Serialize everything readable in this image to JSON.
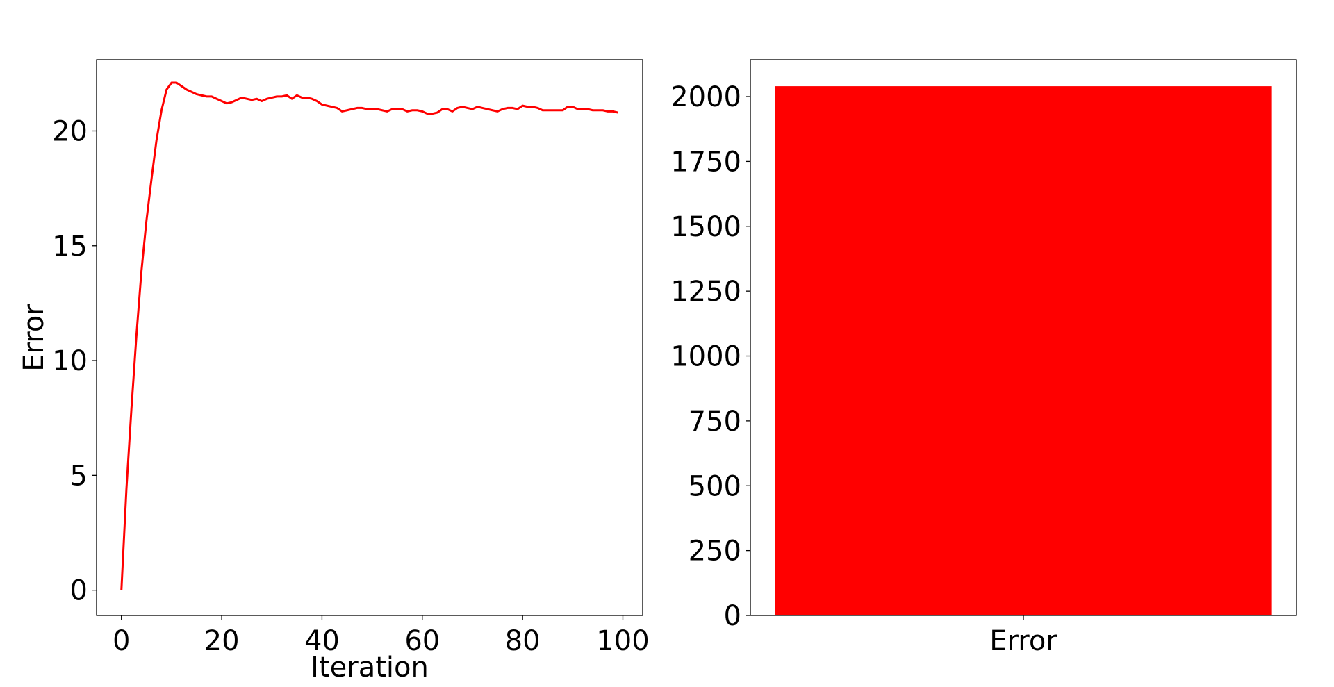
{
  "chart_data": [
    {
      "type": "line",
      "title": "",
      "xlabel": "Iteration",
      "ylabel": "Error",
      "xlim": [
        -4.95,
        103.95
      ],
      "ylim": [
        -1.1,
        23.1
      ],
      "xticks": [
        "0",
        "20",
        "40",
        "60",
        "80",
        "100"
      ],
      "yticks": [
        "0",
        "5",
        "10",
        "15",
        "20"
      ],
      "grid": false,
      "series": [
        {
          "color": "#ff0000",
          "x": [
            0,
            1,
            2,
            3,
            4,
            5,
            6,
            7,
            8,
            9,
            10,
            11,
            12,
            13,
            14,
            15,
            16,
            17,
            18,
            19,
            20,
            21,
            22,
            23,
            24,
            25,
            26,
            27,
            28,
            29,
            30,
            31,
            32,
            33,
            34,
            35,
            36,
            37,
            38,
            39,
            40,
            41,
            42,
            43,
            44,
            45,
            46,
            47,
            48,
            49,
            50,
            51,
            52,
            53,
            54,
            55,
            56,
            57,
            58,
            59,
            60,
            61,
            62,
            63,
            64,
            65,
            66,
            67,
            68,
            69,
            70,
            71,
            72,
            73,
            74,
            75,
            76,
            77,
            78,
            79,
            80,
            81,
            82,
            83,
            84,
            85,
            86,
            87,
            88,
            89,
            90,
            91,
            92,
            93,
            94,
            95,
            96,
            97,
            98,
            99
          ],
          "y": [
            0,
            4.4,
            7.9,
            11.1,
            13.9,
            16.1,
            17.9,
            19.6,
            20.9,
            21.8,
            22.1,
            22.1,
            21.95,
            21.8,
            21.7,
            21.6,
            21.55,
            21.5,
            21.5,
            21.4,
            21.3,
            21.2,
            21.25,
            21.35,
            21.45,
            21.4,
            21.35,
            21.4,
            21.3,
            21.4,
            21.45,
            21.5,
            21.5,
            21.55,
            21.4,
            21.55,
            21.45,
            21.45,
            21.4,
            21.3,
            21.15,
            21.1,
            21.05,
            21.0,
            20.85,
            20.9,
            20.95,
            21.0,
            21.0,
            20.95,
            20.95,
            20.95,
            20.9,
            20.85,
            20.95,
            20.95,
            20.95,
            20.85,
            20.9,
            20.9,
            20.85,
            20.75,
            20.75,
            20.8,
            20.95,
            20.95,
            20.85,
            21.0,
            21.05,
            21.0,
            20.95,
            21.05,
            21.0,
            20.95,
            20.9,
            20.85,
            20.95,
            21.0,
            21.0,
            20.95,
            21.1,
            21.05,
            21.05,
            21.0,
            20.9,
            20.9,
            20.9,
            20.9,
            20.9,
            21.05,
            21.05,
            20.95,
            20.95,
            20.95,
            20.9,
            20.9,
            20.9,
            20.85,
            20.85,
            20.8
          ]
        }
      ]
    },
    {
      "type": "bar",
      "title": "",
      "xlabel": "",
      "ylabel": "",
      "categories": [
        "Error"
      ],
      "values": [
        2040
      ],
      "color": "#ff0000",
      "ylim": [
        0,
        2142
      ],
      "yticks": [
        "0",
        "250",
        "500",
        "750",
        "1000",
        "1250",
        "1500",
        "1750",
        "2000"
      ],
      "grid": false
    }
  ]
}
